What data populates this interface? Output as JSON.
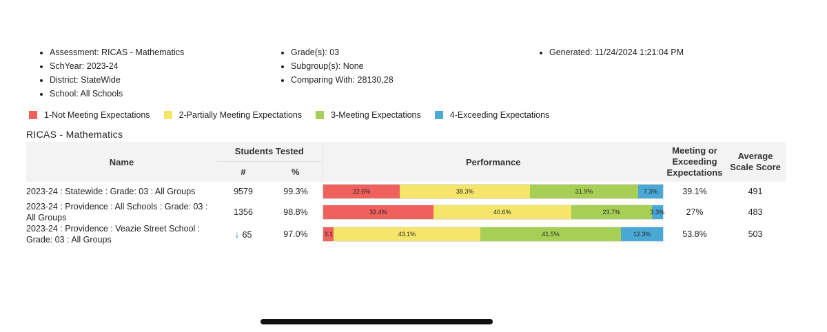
{
  "meta": {
    "col1": [
      "Assessment: RICAS - Mathematics",
      "SchYear: 2023-24",
      "District: StateWide",
      "School: All Schools"
    ],
    "col2": [
      "Grade(s): 03",
      "Subgroup(s): None",
      "Comparing With: 28130,28"
    ],
    "col3": [
      "Generated: 11/24/2024 1:21:04 PM"
    ]
  },
  "legend": [
    {
      "label": "1-Not Meeting Expectations",
      "color": "#f0605d"
    },
    {
      "label": "2-Partially Meeting Expectations",
      "color": "#f5e56b"
    },
    {
      "label": "3-Meeting Expectations",
      "color": "#a7cf55"
    },
    {
      "label": "4-Exceeding Expectations",
      "color": "#4aa8d4"
    }
  ],
  "section_title": "RICAS - Mathematics",
  "table": {
    "headers": {
      "name": "Name",
      "students_tested": "Students Tested",
      "num": "#",
      "pct": "%",
      "performance": "Performance",
      "meeting_or_exceeding": "Meeting or Exceeding Expectations",
      "average_scale_score": "Average Scale Score"
    },
    "rows": [
      {
        "name": "2023-24 : Statewide : Grade: 03 : All Groups",
        "trend_icon": "",
        "num": "9579",
        "pct": "99.3%",
        "segments": [
          22.6,
          38.3,
          31.9,
          7.3
        ],
        "segment_labels": [
          "22.6%",
          "38.3%",
          "31.9%",
          "7.3%"
        ],
        "meeting": "39.1%",
        "avg": "491"
      },
      {
        "name": "2023-24 : Providence : All Schools : Grade: 03 : All Groups",
        "trend_icon": "",
        "num": "1356",
        "pct": "98.8%",
        "segments": [
          32.4,
          40.6,
          23.7,
          3.3
        ],
        "segment_labels": [
          "32.4%",
          "40.6%",
          "23.7%",
          "3.3%"
        ],
        "meeting": "27%",
        "avg": "483"
      },
      {
        "name": "2023-24 : Providence : Veazie Street School : Grade: 03 : All Groups",
        "trend_icon": "↓",
        "num": "65",
        "pct": "97.0%",
        "segments": [
          3.1,
          43.1,
          41.5,
          12.3
        ],
        "segment_labels": [
          "3.1",
          "43.1%",
          "41.5%",
          "12.3%"
        ],
        "meeting": "53.8%",
        "avg": "503"
      }
    ]
  }
}
